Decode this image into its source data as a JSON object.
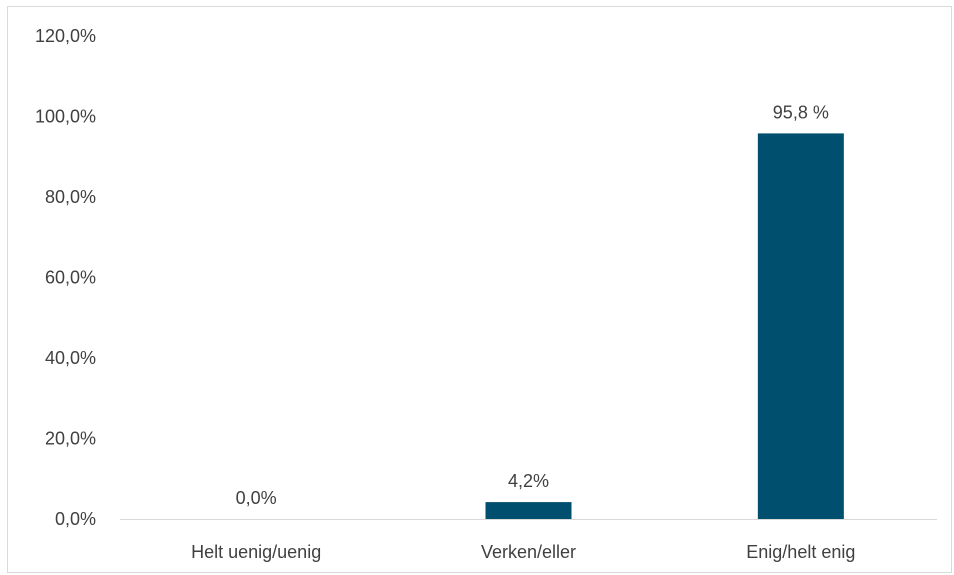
{
  "chart_data": {
    "type": "bar",
    "title": "",
    "xlabel": "",
    "ylabel": "",
    "categories": [
      "Helt uenig/uenig",
      "Verken/eller",
      "Enig/helt enig"
    ],
    "values": [
      0.0,
      4.2,
      95.8
    ],
    "data_labels": [
      "0,0%",
      "4,2%",
      "95,8 %"
    ],
    "ylim": [
      0,
      120
    ],
    "yticks": [
      0,
      20,
      40,
      60,
      80,
      100,
      120
    ],
    "ytick_labels": [
      "0,0%",
      "20,0%",
      "40,0%",
      "60,0%",
      "80,0%",
      "100,0%",
      "120,0%"
    ],
    "grid": false,
    "legend": "none",
    "bar_color": "#004F6E",
    "axis_color": "#d9d9d9",
    "text_color": "#404040"
  }
}
